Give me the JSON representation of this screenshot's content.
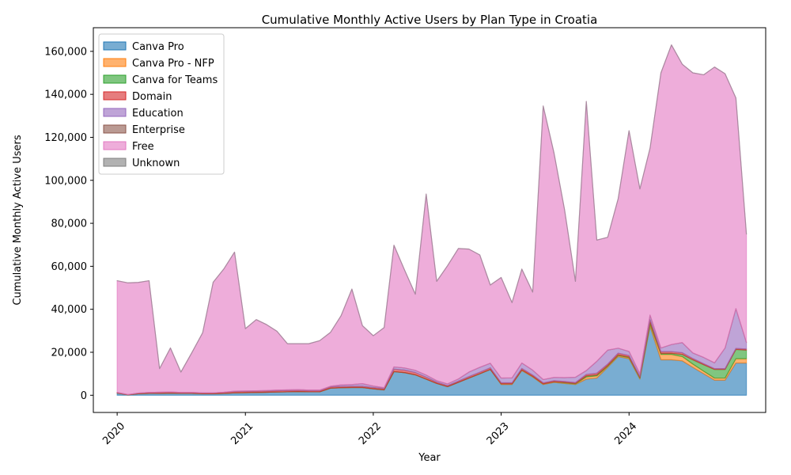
{
  "chart_data": {
    "type": "area",
    "stacked": true,
    "title": "Cumulative Monthly Active Users by Plan Type in Croatia",
    "xlabel": "Year",
    "ylabel": "Cumulative Monthly Active Users",
    "x_tick_labels": [
      "2020",
      "2021",
      "2022",
      "2023",
      "2024"
    ],
    "y_ticks": [
      0,
      20000,
      40000,
      60000,
      80000,
      100000,
      120000,
      140000,
      160000
    ],
    "y_tick_labels": [
      "0",
      "20,000",
      "40,000",
      "60,000",
      "80,000",
      "100,000",
      "120,000",
      "140,000",
      "160,000"
    ],
    "ylim": [
      -8000,
      171000
    ],
    "xlim": [
      "2019-10-25",
      "2025-01-25"
    ],
    "legend_position": "upper left",
    "grid": false,
    "x": [
      "2020-01",
      "2020-02",
      "2020-03",
      "2020-04",
      "2020-05",
      "2020-06",
      "2020-07",
      "2020-08",
      "2020-09",
      "2020-10",
      "2020-11",
      "2020-12",
      "2021-01",
      "2021-02",
      "2021-03",
      "2021-04",
      "2021-05",
      "2021-06",
      "2021-07",
      "2021-08",
      "2021-09",
      "2021-10",
      "2021-11",
      "2021-12",
      "2022-01",
      "2022-02",
      "2022-03",
      "2022-04",
      "2022-05",
      "2022-06",
      "2022-07",
      "2022-08",
      "2022-09",
      "2022-10",
      "2022-11",
      "2022-12",
      "2023-01",
      "2023-02",
      "2023-03",
      "2023-04",
      "2023-05",
      "2023-06",
      "2023-07",
      "2023-08",
      "2023-09",
      "2023-10",
      "2023-11",
      "2023-12",
      "2024-01",
      "2024-02",
      "2024-03",
      "2024-04",
      "2024-05",
      "2024-06",
      "2024-07",
      "2024-08",
      "2024-09",
      "2024-10",
      "2024-11",
      "2024-12"
    ],
    "series": [
      {
        "name": "Canva Pro",
        "color": "#1f77b4",
        "values": [
          1000,
          200,
          700,
          900,
          900,
          1000,
          900,
          900,
          700,
          700,
          900,
          1100,
          1200,
          1300,
          1400,
          1500,
          1600,
          1700,
          1600,
          1600,
          3300,
          3500,
          3600,
          3600,
          3000,
          2500,
          11000,
          10500,
          9500,
          7500,
          5500,
          4000,
          6000,
          8000,
          10000,
          12000,
          5000,
          5000,
          11500,
          8500,
          5000,
          6000,
          5500,
          5000,
          7500,
          8000,
          13000,
          18000,
          17000,
          7500,
          32000,
          16500,
          16500,
          16000,
          13000,
          10000,
          7000,
          7000,
          15000,
          15000
        ]
      },
      {
        "name": "Canva Pro - NFP",
        "color": "#ff7f0e",
        "values": [
          0,
          0,
          0,
          0,
          0,
          0,
          0,
          0,
          0,
          0,
          0,
          0,
          0,
          0,
          0,
          0,
          0,
          0,
          0,
          0,
          0,
          0,
          0,
          0,
          0,
          0,
          0,
          0,
          0,
          0,
          0,
          0,
          0,
          0,
          0,
          0,
          300,
          300,
          300,
          300,
          300,
          300,
          300,
          300,
          1000,
          1000,
          500,
          500,
          500,
          500,
          1000,
          2500,
          2500,
          2000,
          1500,
          1200,
          1000,
          1000,
          2000,
          2000
        ]
      },
      {
        "name": "Canva for Teams",
        "color": "#2ca02c",
        "values": [
          0,
          0,
          0,
          0,
          0,
          0,
          0,
          0,
          0,
          0,
          0,
          0,
          0,
          0,
          0,
          0,
          0,
          0,
          0,
          0,
          0,
          0,
          0,
          0,
          0,
          0,
          0,
          0,
          0,
          0,
          0,
          0,
          0,
          0,
          0,
          0,
          0,
          0,
          0,
          0,
          0,
          0,
          200,
          200,
          500,
          500,
          300,
          300,
          300,
          300,
          1000,
          500,
          500,
          1000,
          2000,
          3000,
          4000,
          4000,
          4300,
          4000
        ]
      },
      {
        "name": "Domain",
        "color": "#d62728",
        "values": [
          300,
          100,
          300,
          400,
          500,
          500,
          400,
          400,
          400,
          400,
          500,
          600,
          600,
          600,
          600,
          600,
          600,
          600,
          500,
          500,
          600,
          600,
          600,
          600,
          600,
          600,
          1200,
          1200,
          1100,
          900,
          600,
          500,
          600,
          700,
          700,
          800,
          500,
          500,
          700,
          600,
          500,
          500,
          400,
          400,
          700,
          800,
          700,
          800,
          700,
          400,
          1200,
          800,
          800,
          800,
          600,
          500,
          400,
          400,
          500,
          500
        ]
      },
      {
        "name": "Education",
        "color": "#9467bd",
        "values": [
          0,
          0,
          0,
          0,
          0,
          0,
          0,
          0,
          0,
          0,
          0,
          200,
          200,
          200,
          200,
          300,
          300,
          300,
          300,
          300,
          300,
          700,
          800,
          1200,
          700,
          400,
          1000,
          1000,
          1000,
          1000,
          700,
          800,
          1000,
          2100,
          2300,
          2100,
          2200,
          2300,
          2500,
          2300,
          1500,
          1500,
          1800,
          2500,
          1800,
          5500,
          6500,
          2300,
          1900,
          1300,
          2100,
          1700,
          3300,
          4700,
          2600,
          2900,
          2700,
          9600,
          18500,
          3100
        ]
      },
      {
        "name": "Enterprise",
        "color": "#8c564b",
        "values": [
          0,
          0,
          0,
          0,
          0,
          0,
          0,
          0,
          0,
          0,
          0,
          0,
          0,
          0,
          0,
          0,
          0,
          0,
          0,
          0,
          0,
          0,
          0,
          0,
          0,
          0,
          0,
          0,
          0,
          0,
          0,
          0,
          0,
          0,
          0,
          0,
          0,
          0,
          0,
          0,
          0,
          0,
          0,
          0,
          0,
          0,
          0,
          0,
          0,
          0,
          0,
          0,
          0,
          0,
          0,
          0,
          0,
          0,
          0,
          0
        ]
      },
      {
        "name": "Free",
        "color": "#e377c2",
        "values": [
          52000,
          52000,
          51500,
          52000,
          11000,
          20500,
          9500,
          18500,
          28000,
          51500,
          57500,
          64700,
          29000,
          33100,
          30800,
          27400,
          21500,
          21400,
          21600,
          23000,
          25100,
          32200,
          44400,
          27000,
          23400,
          28000,
          56600,
          45300,
          35400,
          84200,
          46200,
          55000,
          60700,
          57200,
          52300,
          36400,
          46800,
          35000,
          43700,
          36300,
          127300,
          104300,
          78100,
          44600,
          125200,
          56400,
          52500,
          69600,
          102700,
          86000,
          77700,
          128000,
          139400,
          129500,
          130300,
          131500,
          137600,
          127600,
          98000,
          50400
        ]
      },
      {
        "name": "Unknown",
        "color": "#7f7f7f",
        "values": [
          0,
          0,
          0,
          0,
          0,
          0,
          0,
          0,
          0,
          0,
          0,
          0,
          0,
          0,
          0,
          0,
          0,
          0,
          0,
          0,
          0,
          0,
          0,
          0,
          0,
          0,
          0,
          0,
          0,
          0,
          0,
          0,
          0,
          0,
          0,
          0,
          0,
          0,
          0,
          0,
          0,
          0,
          0,
          0,
          0,
          0,
          0,
          0,
          0,
          0,
          0,
          0,
          0,
          0,
          0,
          0,
          0,
          0,
          0,
          0
        ]
      }
    ]
  }
}
